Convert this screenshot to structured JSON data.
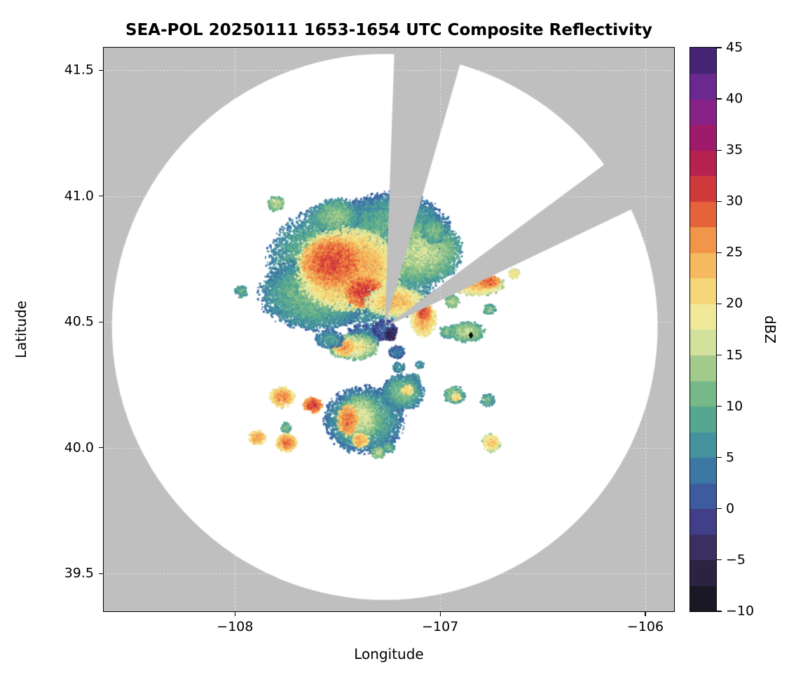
{
  "chart_data": {
    "type": "heatmap",
    "description": "Polar radar composite reflectivity PPI plotted on a longitude/latitude map; white circle is radar coverage area on gray background with two gray blocked beam sectors; colored echoes show reflectivity in dBZ.",
    "title": "SEA-POL 20250111 1653-1654 UTC Composite Reflectivity",
    "xlabel": "Longitude",
    "ylabel": "Latitude",
    "xlim": [
      -108.64,
      -105.86
    ],
    "ylim": [
      39.35,
      41.59
    ],
    "xticks": [
      -108,
      -107,
      -106
    ],
    "xtick_labels": [
      "−108",
      "−107",
      "−106"
    ],
    "yticks": [
      39.5,
      40.0,
      40.5,
      41.0,
      41.5
    ],
    "ytick_labels": [
      "39.5",
      "40.0",
      "40.5",
      "41.0",
      "41.5"
    ],
    "grid": true,
    "colors": {
      "background_gray": "#bfbfbf",
      "coverage_white": "#ffffff",
      "frame": "#000000",
      "gridline": "#ffffff"
    },
    "colorbar": {
      "label": "dBZ",
      "min": -10,
      "max": 45,
      "band_step": 2.5,
      "ticks": [
        45,
        40,
        35,
        30,
        25,
        20,
        15,
        10,
        5,
        0,
        -5,
        -10
      ],
      "tick_labels": [
        "45",
        "40",
        "35",
        "30",
        "25",
        "20",
        "15",
        "10",
        "5",
        "0",
        "−5",
        "−10"
      ],
      "stops": [
        [
          -10,
          "#131318"
        ],
        [
          -7,
          "#27203a"
        ],
        [
          -4,
          "#3a2c5c"
        ],
        [
          -1,
          "#41418c"
        ],
        [
          2,
          "#3c63a4"
        ],
        [
          5,
          "#3e86a4"
        ],
        [
          8,
          "#4da295"
        ],
        [
          11,
          "#72b687"
        ],
        [
          14,
          "#a6cc8c"
        ],
        [
          16,
          "#cfe09c"
        ],
        [
          18,
          "#eeeba6"
        ],
        [
          20,
          "#f5e687"
        ],
        [
          23,
          "#f6c365"
        ],
        [
          26,
          "#f29a4c"
        ],
        [
          28,
          "#ea713d"
        ],
        [
          30,
          "#dc4937"
        ],
        [
          32,
          "#c92f3f"
        ],
        [
          34,
          "#b31f52"
        ],
        [
          36,
          "#a01a68"
        ],
        [
          38,
          "#8f1f80"
        ],
        [
          40,
          "#7a2693"
        ],
        [
          42,
          "#5e2a8f"
        ],
        [
          45,
          "#32205f"
        ]
      ]
    },
    "radar": {
      "center_lon": -107.27,
      "center_lat": 40.48,
      "radius_deg_lat": 1.085,
      "blocked_sectors_azimuth_deg": [
        [
          2,
          16
        ],
        [
          53.5,
          64.5
        ]
      ]
    },
    "station_marker": {
      "lon": -106.85,
      "lat": 40.447,
      "shape": "diamond",
      "color": "#000000"
    },
    "echoes": [
      {
        "lon": -107.42,
        "lat": 40.73,
        "rx": 0.41,
        "ry": 0.24,
        "dbz": 14,
        "fall": 9
      },
      {
        "lon": -107.23,
        "lat": 40.86,
        "rx": 0.27,
        "ry": 0.15,
        "dbz": 11,
        "fall": 8
      },
      {
        "lon": -107.51,
        "lat": 40.92,
        "rx": 0.11,
        "ry": 0.07,
        "dbz": 13,
        "fall": 7
      },
      {
        "lon": -107.61,
        "lat": 40.61,
        "rx": 0.26,
        "ry": 0.14,
        "dbz": 12,
        "fall": 8
      },
      {
        "lon": -107.1,
        "lat": 40.78,
        "rx": 0.2,
        "ry": 0.13,
        "dbz": 16,
        "fall": 9
      },
      {
        "lon": -107.03,
        "lat": 40.86,
        "rx": 0.06,
        "ry": 0.05,
        "dbz": 12,
        "fall": 6
      },
      {
        "lon": -107.45,
        "lat": 40.71,
        "rx": 0.25,
        "ry": 0.16,
        "dbz": 26,
        "fall": 9
      },
      {
        "lon": -107.52,
        "lat": 40.735,
        "rx": 0.15,
        "ry": 0.1,
        "dbz": 30,
        "fall": 6
      },
      {
        "lon": -107.37,
        "lat": 40.62,
        "rx": 0.09,
        "ry": 0.06,
        "dbz": 31,
        "fall": 5
      },
      {
        "lon": -107.22,
        "lat": 40.58,
        "rx": 0.14,
        "ry": 0.06,
        "dbz": 24,
        "fall": 8
      },
      {
        "lon": -107.8,
        "lat": 40.97,
        "rx": 0.04,
        "ry": 0.03,
        "dbz": 15,
        "fall": 5
      },
      {
        "lon": -107.97,
        "lat": 40.62,
        "rx": 0.03,
        "ry": 0.025,
        "dbz": 10,
        "fall": 4
      },
      {
        "lon": -107.73,
        "lat": 40.62,
        "rx": 0.035,
        "ry": 0.03,
        "dbz": 12,
        "fall": 5
      },
      {
        "lon": -106.82,
        "lat": 40.65,
        "rx": 0.13,
        "ry": 0.045,
        "dbz": 24,
        "fall": 9
      },
      {
        "lon": -106.76,
        "lat": 40.66,
        "rx": 0.05,
        "ry": 0.025,
        "dbz": 29,
        "fall": 4
      },
      {
        "lon": -106.94,
        "lat": 40.58,
        "rx": 0.035,
        "ry": 0.025,
        "dbz": 14,
        "fall": 5
      },
      {
        "lon": -106.64,
        "lat": 40.69,
        "rx": 0.03,
        "ry": 0.02,
        "dbz": 21,
        "fall": 5
      },
      {
        "lon": -106.76,
        "lat": 40.55,
        "rx": 0.03,
        "ry": 0.02,
        "dbz": 12,
        "fall": 5
      },
      {
        "lon": -107.37,
        "lat": 40.44,
        "rx": 0.09,
        "ry": 0.045,
        "dbz": 6,
        "fall": 5
      },
      {
        "lon": -107.27,
        "lat": 40.47,
        "rx": 0.06,
        "ry": 0.04,
        "dbz": 2,
        "fall": 3
      },
      {
        "lon": -107.24,
        "lat": 40.45,
        "rx": 0.03,
        "ry": 0.025,
        "dbz": -4,
        "fall": 0
      },
      {
        "lon": -107.08,
        "lat": 40.51,
        "rx": 0.06,
        "ry": 0.07,
        "dbz": 25,
        "fall": 7
      },
      {
        "lon": -107.08,
        "lat": 40.54,
        "rx": 0.035,
        "ry": 0.035,
        "dbz": 30,
        "fall": 4
      },
      {
        "lon": -107.42,
        "lat": 40.4,
        "rx": 0.12,
        "ry": 0.05,
        "dbz": 19,
        "fall": 8
      },
      {
        "lon": -107.47,
        "lat": 40.4,
        "rx": 0.05,
        "ry": 0.035,
        "dbz": 26,
        "fall": 5
      },
      {
        "lon": -107.54,
        "lat": 40.43,
        "rx": 0.07,
        "ry": 0.035,
        "dbz": 8,
        "fall": 5
      },
      {
        "lon": -106.96,
        "lat": 40.46,
        "rx": 0.045,
        "ry": 0.025,
        "dbz": 12,
        "fall": 5
      },
      {
        "lon": -106.87,
        "lat": 40.46,
        "rx": 0.085,
        "ry": 0.04,
        "dbz": 15,
        "fall": 7
      },
      {
        "lon": -107.21,
        "lat": 40.38,
        "rx": 0.04,
        "ry": 0.025,
        "dbz": 5,
        "fall": 4
      },
      {
        "lon": -107.2,
        "lat": 40.32,
        "rx": 0.03,
        "ry": 0.02,
        "dbz": 7,
        "fall": 3
      },
      {
        "lon": -107.13,
        "lat": 40.27,
        "rx": 0.035,
        "ry": 0.025,
        "dbz": 11,
        "fall": 4
      },
      {
        "lon": -107.1,
        "lat": 40.33,
        "rx": 0.02,
        "ry": 0.015,
        "dbz": 8,
        "fall": 3
      },
      {
        "lon": -107.77,
        "lat": 40.2,
        "rx": 0.06,
        "ry": 0.04,
        "dbz": 27,
        "fall": 8
      },
      {
        "lon": -107.62,
        "lat": 40.17,
        "rx": 0.045,
        "ry": 0.03,
        "dbz": 31,
        "fall": 6
      },
      {
        "lon": -107.37,
        "lat": 40.11,
        "rx": 0.19,
        "ry": 0.13,
        "dbz": 11,
        "fall": 8
      },
      {
        "lon": -107.39,
        "lat": 40.12,
        "rx": 0.1,
        "ry": 0.085,
        "dbz": 17,
        "fall": 7
      },
      {
        "lon": -107.45,
        "lat": 40.11,
        "rx": 0.05,
        "ry": 0.06,
        "dbz": 28,
        "fall": 6
      },
      {
        "lon": -107.39,
        "lat": 40.03,
        "rx": 0.045,
        "ry": 0.03,
        "dbz": 25,
        "fall": 6
      },
      {
        "lon": -107.18,
        "lat": 40.22,
        "rx": 0.1,
        "ry": 0.07,
        "dbz": 12,
        "fall": 8
      },
      {
        "lon": -107.16,
        "lat": 40.23,
        "rx": 0.03,
        "ry": 0.02,
        "dbz": 22,
        "fall": 4
      },
      {
        "lon": -106.93,
        "lat": 40.21,
        "rx": 0.05,
        "ry": 0.035,
        "dbz": 13,
        "fall": 6
      },
      {
        "lon": -106.92,
        "lat": 40.2,
        "rx": 0.02,
        "ry": 0.015,
        "dbz": 22,
        "fall": 3
      },
      {
        "lon": -106.77,
        "lat": 40.19,
        "rx": 0.035,
        "ry": 0.025,
        "dbz": 11,
        "fall": 5
      },
      {
        "lon": -106.75,
        "lat": 40.02,
        "rx": 0.045,
        "ry": 0.035,
        "dbz": 23,
        "fall": 8
      },
      {
        "lon": -107.89,
        "lat": 40.04,
        "rx": 0.04,
        "ry": 0.03,
        "dbz": 26,
        "fall": 7
      },
      {
        "lon": -107.75,
        "lat": 40.02,
        "rx": 0.05,
        "ry": 0.035,
        "dbz": 28,
        "fall": 8
      },
      {
        "lon": -107.75,
        "lat": 40.08,
        "rx": 0.025,
        "ry": 0.02,
        "dbz": 12,
        "fall": 4
      },
      {
        "lon": -107.3,
        "lat": 39.98,
        "rx": 0.035,
        "ry": 0.025,
        "dbz": 15,
        "fall": 6
      },
      {
        "lon": -107.25,
        "lat": 40.0,
        "rx": 0.03,
        "ry": 0.02,
        "dbz": 11,
        "fall": 5
      }
    ]
  }
}
